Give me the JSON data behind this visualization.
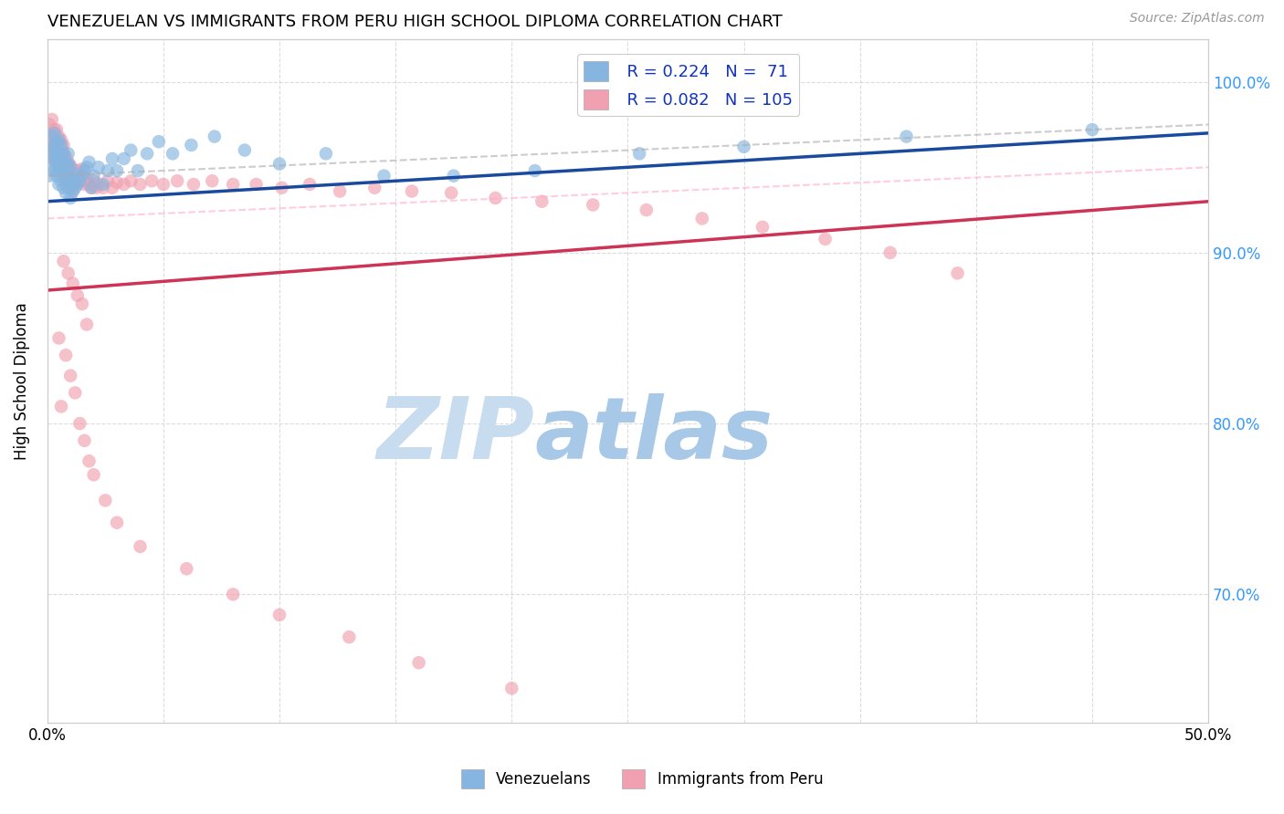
{
  "title": "VENEZUELAN VS IMMIGRANTS FROM PERU HIGH SCHOOL DIPLOMA CORRELATION CHART",
  "source": "Source: ZipAtlas.com",
  "ylabel": "High School Diploma",
  "ytick_labels": [
    "100.0%",
    "90.0%",
    "80.0%",
    "70.0%"
  ],
  "ytick_vals": [
    1.0,
    0.9,
    0.8,
    0.7
  ],
  "xlim": [
    0.0,
    0.5
  ],
  "ylim": [
    0.625,
    1.025
  ],
  "legend_r_blue": "R = 0.224",
  "legend_n_blue": "N =  71",
  "legend_r_pink": "R = 0.082",
  "legend_n_pink": "N = 105",
  "legend_label_blue": "Venezuelans",
  "legend_label_pink": "Immigrants from Peru",
  "blue_color": "#85B5E0",
  "pink_color": "#F0A0B0",
  "trend_blue_color": "#1A4A9E",
  "trend_pink_color": "#CC3355",
  "watermark_zip": "ZIP",
  "watermark_atlas": "atlas",
  "watermark_color_zip": "#C8DCF0",
  "watermark_color_atlas": "#A8C8E8",
  "ven_x": [
    0.001,
    0.001,
    0.002,
    0.002,
    0.002,
    0.003,
    0.003,
    0.003,
    0.003,
    0.004,
    0.004,
    0.004,
    0.004,
    0.005,
    0.005,
    0.005,
    0.005,
    0.005,
    0.006,
    0.006,
    0.006,
    0.006,
    0.007,
    0.007,
    0.007,
    0.007,
    0.008,
    0.008,
    0.008,
    0.009,
    0.009,
    0.009,
    0.009,
    0.01,
    0.01,
    0.01,
    0.011,
    0.011,
    0.012,
    0.012,
    0.013,
    0.014,
    0.015,
    0.016,
    0.017,
    0.018,
    0.019,
    0.02,
    0.022,
    0.024,
    0.026,
    0.028,
    0.03,
    0.033,
    0.036,
    0.039,
    0.043,
    0.048,
    0.054,
    0.062,
    0.072,
    0.085,
    0.1,
    0.12,
    0.145,
    0.175,
    0.21,
    0.255,
    0.3,
    0.37,
    0.45
  ],
  "ven_y": [
    0.945,
    0.958,
    0.952,
    0.961,
    0.968,
    0.948,
    0.955,
    0.962,
    0.97,
    0.945,
    0.952,
    0.96,
    0.965,
    0.94,
    0.948,
    0.955,
    0.96,
    0.966,
    0.942,
    0.95,
    0.956,
    0.963,
    0.938,
    0.946,
    0.952,
    0.958,
    0.935,
    0.944,
    0.952,
    0.938,
    0.945,
    0.952,
    0.958,
    0.932,
    0.941,
    0.95,
    0.936,
    0.944,
    0.938,
    0.946,
    0.94,
    0.942,
    0.945,
    0.948,
    0.95,
    0.953,
    0.938,
    0.945,
    0.95,
    0.94,
    0.948,
    0.955,
    0.948,
    0.955,
    0.96,
    0.948,
    0.958,
    0.965,
    0.958,
    0.963,
    0.968,
    0.96,
    0.952,
    0.958,
    0.945,
    0.945,
    0.948,
    0.958,
    0.962,
    0.968,
    0.972
  ],
  "peru_x": [
    0.001,
    0.001,
    0.001,
    0.002,
    0.002,
    0.002,
    0.002,
    0.003,
    0.003,
    0.003,
    0.003,
    0.004,
    0.004,
    0.004,
    0.004,
    0.005,
    0.005,
    0.005,
    0.005,
    0.006,
    0.006,
    0.006,
    0.006,
    0.007,
    0.007,
    0.007,
    0.007,
    0.008,
    0.008,
    0.008,
    0.009,
    0.009,
    0.009,
    0.01,
    0.01,
    0.01,
    0.011,
    0.011,
    0.012,
    0.012,
    0.013,
    0.013,
    0.014,
    0.015,
    0.015,
    0.016,
    0.017,
    0.018,
    0.019,
    0.02,
    0.021,
    0.022,
    0.024,
    0.026,
    0.028,
    0.03,
    0.033,
    0.036,
    0.04,
    0.045,
    0.05,
    0.056,
    0.063,
    0.071,
    0.08,
    0.09,
    0.101,
    0.113,
    0.126,
    0.141,
    0.157,
    0.174,
    0.193,
    0.213,
    0.235,
    0.258,
    0.282,
    0.308,
    0.335,
    0.363,
    0.392,
    0.007,
    0.009,
    0.011,
    0.013,
    0.015,
    0.017,
    0.005,
    0.008,
    0.01,
    0.012,
    0.006,
    0.014,
    0.016,
    0.018,
    0.02,
    0.025,
    0.03,
    0.04,
    0.06,
    0.08,
    0.1,
    0.13,
    0.16,
    0.2
  ],
  "peru_y": [
    0.968,
    0.975,
    0.96,
    0.962,
    0.97,
    0.978,
    0.955,
    0.958,
    0.965,
    0.972,
    0.96,
    0.955,
    0.962,
    0.968,
    0.972,
    0.95,
    0.957,
    0.963,
    0.968,
    0.948,
    0.955,
    0.962,
    0.966,
    0.945,
    0.952,
    0.958,
    0.963,
    0.942,
    0.95,
    0.956,
    0.94,
    0.947,
    0.953,
    0.938,
    0.945,
    0.951,
    0.936,
    0.943,
    0.94,
    0.948,
    0.942,
    0.948,
    0.945,
    0.942,
    0.949,
    0.94,
    0.943,
    0.94,
    0.938,
    0.942,
    0.938,
    0.94,
    0.938,
    0.942,
    0.938,
    0.941,
    0.94,
    0.942,
    0.94,
    0.942,
    0.94,
    0.942,
    0.94,
    0.942,
    0.94,
    0.94,
    0.938,
    0.94,
    0.936,
    0.938,
    0.936,
    0.935,
    0.932,
    0.93,
    0.928,
    0.925,
    0.92,
    0.915,
    0.908,
    0.9,
    0.888,
    0.895,
    0.888,
    0.882,
    0.875,
    0.87,
    0.858,
    0.85,
    0.84,
    0.828,
    0.818,
    0.81,
    0.8,
    0.79,
    0.778,
    0.77,
    0.755,
    0.742,
    0.728,
    0.715,
    0.7,
    0.688,
    0.675,
    0.66,
    0.645
  ]
}
